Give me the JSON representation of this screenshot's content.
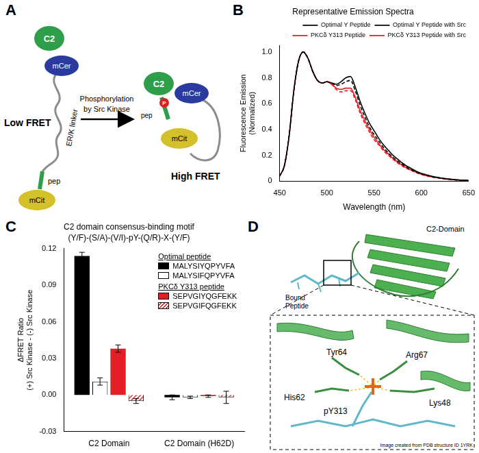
{
  "panel_labels": [
    "A",
    "B",
    "C",
    "D"
  ],
  "diagram": {
    "c2": "C2",
    "mcer": "mCer",
    "linker": "ER/K linker",
    "pep": "pep",
    "mcit": "mCit",
    "low_fret": "Low FRET",
    "arrow_label": [
      "Phosphorylation",
      "by Src Kinase"
    ],
    "high_fret": "High FRET",
    "phospho": "P"
  },
  "chart_data": [
    {
      "type": "line",
      "title": "Representative Emission Spectra",
      "xlabel": "Wavelength (nm)",
      "ylabel": [
        "Fluorescence Emission",
        "(Normalized)"
      ],
      "x": [
        450,
        455,
        460,
        465,
        470,
        475,
        480,
        485,
        490,
        495,
        500,
        505,
        510,
        515,
        520,
        525,
        530,
        535,
        540,
        545,
        550,
        555,
        560,
        565,
        570,
        575,
        580,
        585,
        590,
        595,
        600,
        605,
        610,
        615,
        620,
        625,
        630,
        635,
        640,
        645,
        650
      ],
      "series": [
        {
          "name": "Optimal Y Peptide",
          "color": "#000000",
          "line_style": "dashed",
          "values": [
            0.04,
            0.12,
            0.35,
            0.7,
            0.93,
            1.0,
            0.95,
            0.85,
            0.78,
            0.76,
            0.77,
            0.76,
            0.74,
            0.75,
            0.77,
            0.78,
            0.7,
            0.59,
            0.5,
            0.42,
            0.36,
            0.31,
            0.26,
            0.22,
            0.185,
            0.155,
            0.13,
            0.105,
            0.087,
            0.07,
            0.056,
            0.046,
            0.037,
            0.03,
            0.024,
            0.019,
            0.015,
            0.011,
            0.009,
            0.007,
            0.005
          ]
        },
        {
          "name": "Optimal Y Peptide with Src",
          "color": "#000000",
          "line_style": "solid",
          "values": [
            0.04,
            0.12,
            0.35,
            0.7,
            0.93,
            1.0,
            0.95,
            0.85,
            0.78,
            0.76,
            0.77,
            0.76,
            0.75,
            0.77,
            0.8,
            0.81,
            0.73,
            0.62,
            0.53,
            0.45,
            0.39,
            0.33,
            0.28,
            0.24,
            0.2,
            0.17,
            0.14,
            0.115,
            0.095,
            0.075,
            0.06,
            0.05,
            0.04,
            0.032,
            0.026,
            0.02,
            0.016,
            0.012,
            0.01,
            0.008,
            0.006
          ]
        },
        {
          "name": "PKCδ Y313 Peptide",
          "color": "#e31e24",
          "line_style": "dashed",
          "values": [
            0.04,
            0.12,
            0.35,
            0.7,
            0.93,
            1.0,
            0.95,
            0.85,
            0.78,
            0.76,
            0.77,
            0.75,
            0.71,
            0.69,
            0.7,
            0.7,
            0.63,
            0.53,
            0.45,
            0.38,
            0.32,
            0.28,
            0.235,
            0.2,
            0.168,
            0.14,
            0.116,
            0.096,
            0.08,
            0.064,
            0.052,
            0.042,
            0.034,
            0.027,
            0.022,
            0.017,
            0.013,
            0.01,
            0.008,
            0.006,
            0.005
          ]
        },
        {
          "name": "PKCδ Y313 Peptide with Src",
          "color": "#e31e24",
          "line_style": "solid",
          "values": [
            0.04,
            0.12,
            0.35,
            0.7,
            0.93,
            1.0,
            0.95,
            0.85,
            0.78,
            0.76,
            0.77,
            0.75,
            0.72,
            0.71,
            0.72,
            0.72,
            0.65,
            0.55,
            0.47,
            0.4,
            0.34,
            0.29,
            0.245,
            0.21,
            0.175,
            0.148,
            0.122,
            0.1,
            0.083,
            0.067,
            0.054,
            0.044,
            0.036,
            0.029,
            0.023,
            0.018,
            0.014,
            0.011,
            0.009,
            0.007,
            0.005
          ]
        }
      ],
      "xlim": [
        450,
        650
      ],
      "xticks": [
        450,
        500,
        550,
        600,
        650
      ],
      "ylim": [
        0,
        1.05
      ],
      "yticks": [
        0,
        0.2,
        0.4,
        0.6,
        0.8,
        {
          "value": 1,
          "label": "1.0"
        }
      ],
      "grid": false,
      "legend": "top"
    },
    {
      "type": "bar",
      "title": "C2 domain consensus-binding motif",
      "subtitle": "(Y/F)-(S/A)-(V/I)-pY-(Q/R)-X-(Y/F)",
      "ylabel": [
        "ΔFRET Ratio",
        "(+) Src Kinase - (-) Src Kinase"
      ],
      "categories": [
        "C2 Domain",
        "C2 Domain (H62D)"
      ],
      "series": [
        {
          "name": "MALYSIYQPYVFA",
          "group": "Optimal peptide",
          "color": "#000000",
          "values": [
            0.114,
            -0.002
          ],
          "errors": [
            0.003,
            0.002
          ]
        },
        {
          "name": "MALYSIFQPYVFA",
          "group": "Optimal peptide",
          "color": "#ffffff",
          "values": [
            0.011,
            -0.002
          ],
          "errors": [
            0.003,
            0.001
          ]
        },
        {
          "name": "SEPVGIYQGFEKK",
          "group": "PKCδ Y313 peptide",
          "color": "#e31e24",
          "values": [
            0.038,
            -0.001
          ],
          "errors": [
            0.003,
            0.001
          ]
        },
        {
          "name": "SEPVGIFQGFEKK",
          "group": "PKCδ Y313 peptide",
          "color": "#e31e24",
          "line_style": "hatched",
          "values": [
            -0.005,
            -0.002
          ],
          "errors": [
            0.002,
            0.005
          ]
        }
      ],
      "ylim": [
        -0.03,
        0.12
      ],
      "yticks": [
        -0.03,
        {
          "value": 0,
          "label": "0.00"
        },
        0.03,
        0.06,
        0.09,
        0.12
      ],
      "grid": false,
      "legend": "top-right"
    }
  ],
  "structure": {
    "domain": "C2-Domain",
    "peptide": [
      "Bound",
      "Peptide"
    ],
    "residues": [
      "Tyr64",
      "Arg67",
      "His62",
      "pY313",
      "Lys48"
    ],
    "credit": "Image created from PDB structure ID 1YRK"
  }
}
